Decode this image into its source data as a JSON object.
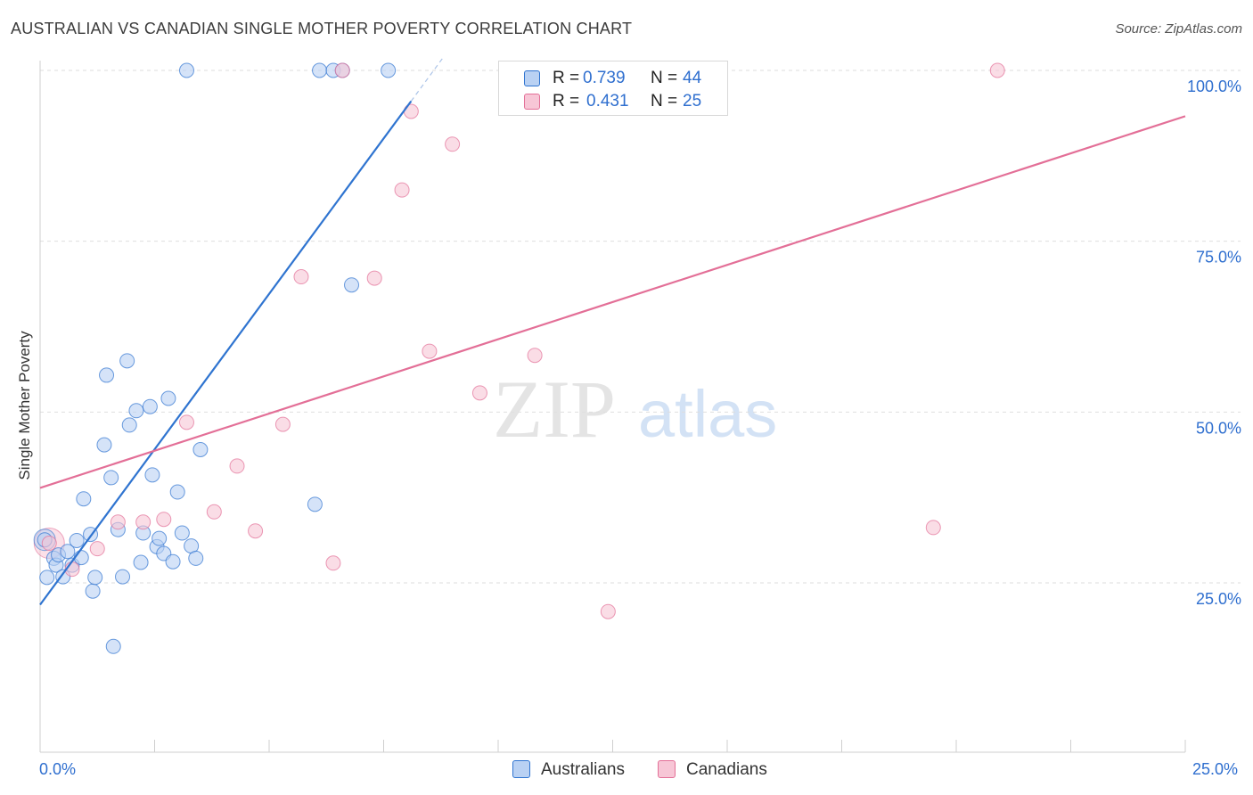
{
  "header": {
    "title": "AUSTRALIAN VS CANADIAN SINGLE MOTHER POVERTY CORRELATION CHART",
    "source": "Source: ZipAtlas.com"
  },
  "colors": {
    "australians": "#2f74d0",
    "australians_fill": "#b9d1f3",
    "canadians": "#e36f97",
    "canadians_fill": "#f7c6d6",
    "axis_label": "#2f6fcf"
  },
  "legend": {
    "rows": [
      {
        "r_label": "R =",
        "r_value": "0.739",
        "n_label": "N =",
        "n_value": "44"
      },
      {
        "r_label": "R =",
        "r_value": "0.431",
        "n_label": "N =",
        "n_value": "25"
      }
    ],
    "series_names": [
      "Australians",
      "Canadians"
    ]
  },
  "watermark": {
    "zip": "ZIP",
    "atlas": "atlas"
  },
  "chart_data": {
    "type": "scatter",
    "title": "AUSTRALIAN VS CANADIAN SINGLE MOTHER POVERTY CORRELATION CHART",
    "xlabel": "",
    "ylabel": "Single Mother Poverty",
    "xlim": [
      0,
      25
    ],
    "ylim": [
      5,
      102
    ],
    "x_tick_labels": [
      "0.0%",
      "25.0%"
    ],
    "y_tick_labels": [
      "25.0%",
      "50.0%",
      "75.0%",
      "100.0%"
    ],
    "y_ticks": [
      25,
      50,
      75,
      100
    ],
    "grid": true,
    "legend_position": "top-center",
    "series": [
      {
        "name": "Australians",
        "r": 0.739,
        "n": 44,
        "trend": {
          "x": [
            0,
            8.1
          ],
          "y": [
            21.8,
            95.5
          ],
          "dashed_to": [
            8.8,
            101.9
          ]
        },
        "points": [
          [
            0.1,
            31.3
          ],
          [
            0.15,
            25.8
          ],
          [
            0.3,
            28.6
          ],
          [
            0.35,
            27.6
          ],
          [
            0.4,
            29.1
          ],
          [
            0.5,
            25.9
          ],
          [
            0.6,
            29.6
          ],
          [
            0.7,
            27.6
          ],
          [
            0.8,
            31.2
          ],
          [
            0.9,
            28.7
          ],
          [
            0.95,
            37.3
          ],
          [
            1.1,
            32.1
          ],
          [
            1.15,
            23.8
          ],
          [
            1.2,
            25.8
          ],
          [
            1.4,
            45.2
          ],
          [
            1.45,
            55.4
          ],
          [
            1.55,
            40.4
          ],
          [
            1.6,
            15.7
          ],
          [
            1.7,
            32.8
          ],
          [
            1.8,
            25.9
          ],
          [
            1.9,
            57.5
          ],
          [
            1.95,
            48.1
          ],
          [
            2.1,
            50.2
          ],
          [
            2.2,
            28.0
          ],
          [
            2.25,
            32.3
          ],
          [
            2.4,
            50.8
          ],
          [
            2.45,
            40.8
          ],
          [
            2.55,
            30.3
          ],
          [
            2.6,
            31.5
          ],
          [
            2.7,
            29.3
          ],
          [
            2.8,
            52.0
          ],
          [
            2.9,
            28.1
          ],
          [
            3.0,
            38.3
          ],
          [
            3.1,
            32.3
          ],
          [
            3.2,
            100.0
          ],
          [
            3.3,
            30.4
          ],
          [
            3.4,
            28.6
          ],
          [
            3.5,
            44.5
          ],
          [
            6.0,
            36.5
          ],
          [
            6.1,
            100.0
          ],
          [
            6.4,
            100.0
          ],
          [
            6.6,
            100.0
          ],
          [
            6.8,
            68.6
          ],
          [
            7.6,
            100.0
          ]
        ]
      },
      {
        "name": "Canadians",
        "r": 0.431,
        "n": 25,
        "trend": {
          "x": [
            0,
            25
          ],
          "y": [
            38.9,
            93.3
          ]
        },
        "points": [
          [
            0.2,
            30.8
          ],
          [
            0.7,
            27.0
          ],
          [
            1.25,
            30.0
          ],
          [
            1.7,
            33.9
          ],
          [
            2.25,
            33.9
          ],
          [
            2.7,
            34.3
          ],
          [
            3.2,
            48.5
          ],
          [
            3.8,
            35.4
          ],
          [
            4.3,
            42.1
          ],
          [
            4.7,
            32.6
          ],
          [
            5.3,
            48.2
          ],
          [
            5.7,
            69.8
          ],
          [
            6.4,
            27.9
          ],
          [
            7.3,
            69.6
          ],
          [
            7.9,
            82.5
          ],
          [
            8.1,
            94.0
          ],
          [
            8.5,
            58.9
          ],
          [
            9.0,
            89.2
          ],
          [
            9.6,
            52.8
          ],
          [
            10.4,
            100.0
          ],
          [
            10.8,
            58.3
          ],
          [
            12.4,
            20.8
          ],
          [
            6.6,
            100.0
          ],
          [
            19.5,
            33.1
          ],
          [
            20.9,
            100.0
          ]
        ]
      }
    ]
  }
}
